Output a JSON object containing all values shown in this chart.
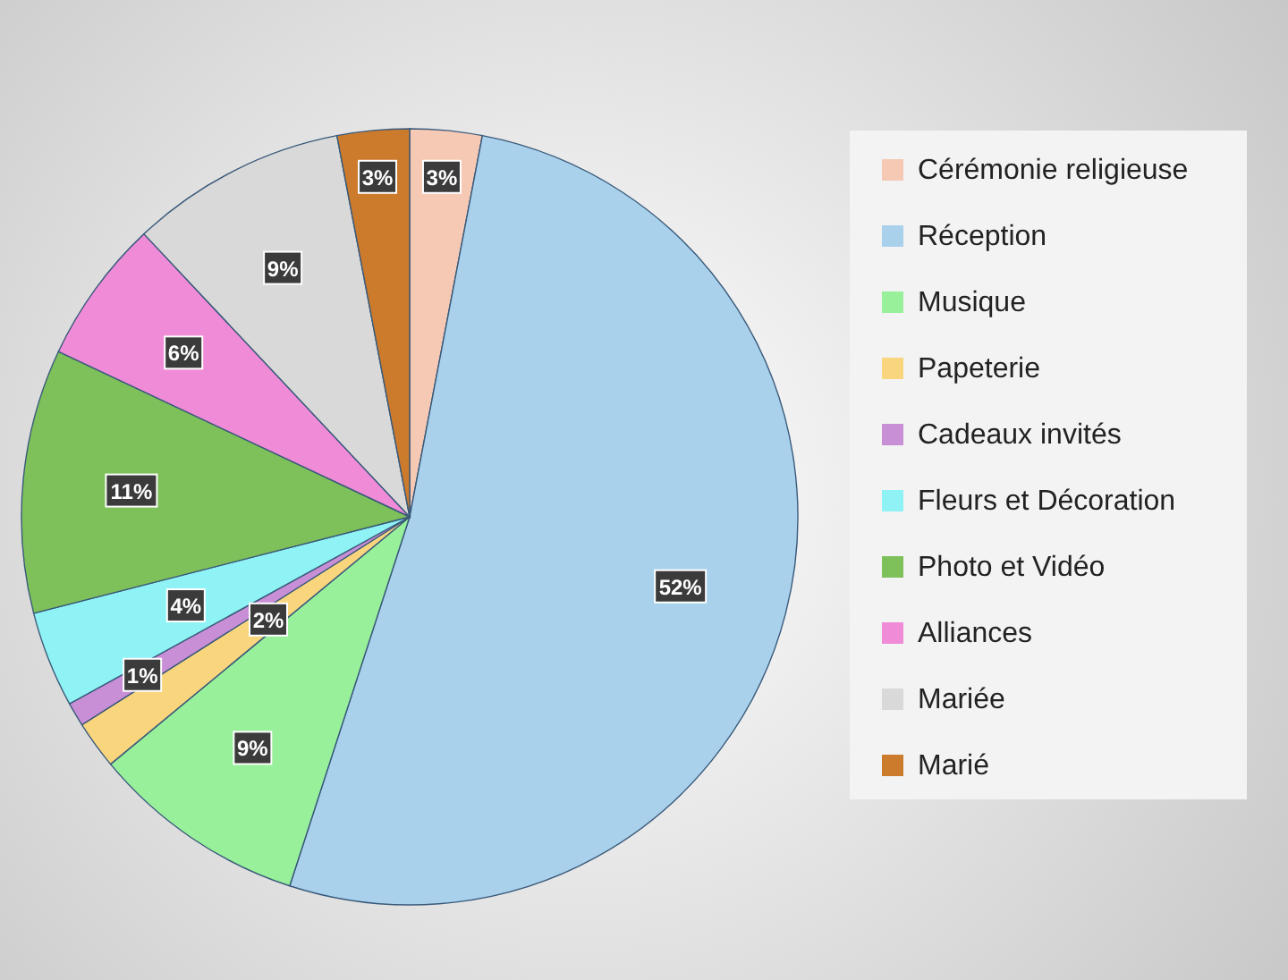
{
  "chart_data": {
    "type": "pie",
    "categories": [
      "Cérémonie religieuse",
      "Réception",
      "Musique",
      "Papeterie",
      "Cadeaux invités",
      "Fleurs et Décoration",
      "Photo et Vidéo",
      "Alliances",
      "Mariée",
      "Marié"
    ],
    "values": [
      3,
      52,
      9,
      2,
      1,
      4,
      11,
      6,
      9,
      3
    ],
    "colors": [
      "#f6c9b5",
      "#a9d1ec",
      "#98f09b",
      "#f9d57e",
      "#c98fd6",
      "#8ff2f4",
      "#7ec05a",
      "#f08bd8",
      "#d9d9d9",
      "#cc7a2c"
    ],
    "value_labels": [
      "3%",
      "52%",
      "9%",
      "2%",
      "1%",
      "4%",
      "11%",
      "6%",
      "9%",
      "3%"
    ],
    "legend": "right"
  }
}
